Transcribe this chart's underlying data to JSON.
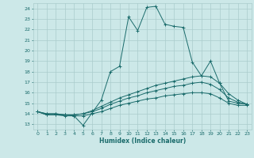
{
  "xlabel": "Humidex (Indice chaleur)",
  "background_color": "#cce8e8",
  "grid_color": "#aacccc",
  "line_color": "#1a6b6b",
  "xlim": [
    -0.5,
    23.5
  ],
  "ylim": [
    12.5,
    24.5
  ],
  "yticks": [
    13,
    14,
    15,
    16,
    17,
    18,
    19,
    20,
    21,
    22,
    23,
    24
  ],
  "xtick_labels": [
    "0",
    "1",
    "2",
    "3",
    "4",
    "5",
    "6",
    "7",
    "8",
    "9",
    "10",
    "11",
    "12",
    "13",
    "14",
    "15",
    "16",
    "17",
    "18",
    "19",
    "20",
    "21",
    "22",
    "23"
  ],
  "series": [
    {
      "x": [
        0,
        1,
        2,
        3,
        4,
        5,
        6,
        7,
        8,
        9,
        10,
        11,
        12,
        13,
        14,
        15,
        16,
        17,
        18,
        19,
        20,
        21,
        22,
        23
      ],
      "y": [
        14.2,
        13.9,
        13.9,
        13.9,
        13.8,
        12.9,
        14.1,
        15.3,
        18.0,
        18.5,
        23.2,
        21.9,
        24.1,
        24.2,
        22.5,
        22.3,
        22.2,
        18.9,
        17.6,
        19.0,
        16.9,
        15.2,
        15.0,
        14.9
      ]
    },
    {
      "x": [
        0,
        1,
        2,
        3,
        4,
        5,
        6,
        7,
        8,
        9,
        10,
        11,
        12,
        13,
        14,
        15,
        16,
        17,
        18,
        19,
        20,
        21,
        22,
        23
      ],
      "y": [
        14.2,
        14.0,
        14.0,
        13.9,
        13.9,
        14.0,
        14.3,
        14.7,
        15.1,
        15.5,
        15.8,
        16.1,
        16.4,
        16.7,
        16.9,
        17.1,
        17.3,
        17.5,
        17.6,
        17.5,
        16.9,
        15.9,
        15.3,
        14.9
      ]
    },
    {
      "x": [
        0,
        1,
        2,
        3,
        4,
        5,
        6,
        7,
        8,
        9,
        10,
        11,
        12,
        13,
        14,
        15,
        16,
        17,
        18,
        19,
        20,
        21,
        22,
        23
      ],
      "y": [
        14.2,
        14.0,
        14.0,
        13.9,
        13.9,
        14.0,
        14.2,
        14.5,
        14.9,
        15.2,
        15.5,
        15.7,
        16.0,
        16.2,
        16.4,
        16.6,
        16.7,
        16.9,
        17.0,
        16.8,
        16.3,
        15.5,
        15.1,
        14.9
      ]
    },
    {
      "x": [
        0,
        1,
        2,
        3,
        4,
        5,
        6,
        7,
        8,
        9,
        10,
        11,
        12,
        13,
        14,
        15,
        16,
        17,
        18,
        19,
        20,
        21,
        22,
        23
      ],
      "y": [
        14.2,
        13.9,
        13.9,
        13.8,
        13.8,
        13.8,
        14.0,
        14.2,
        14.5,
        14.8,
        15.0,
        15.2,
        15.4,
        15.5,
        15.7,
        15.8,
        15.9,
        16.0,
        16.0,
        15.9,
        15.5,
        15.0,
        14.8,
        14.8
      ]
    }
  ]
}
